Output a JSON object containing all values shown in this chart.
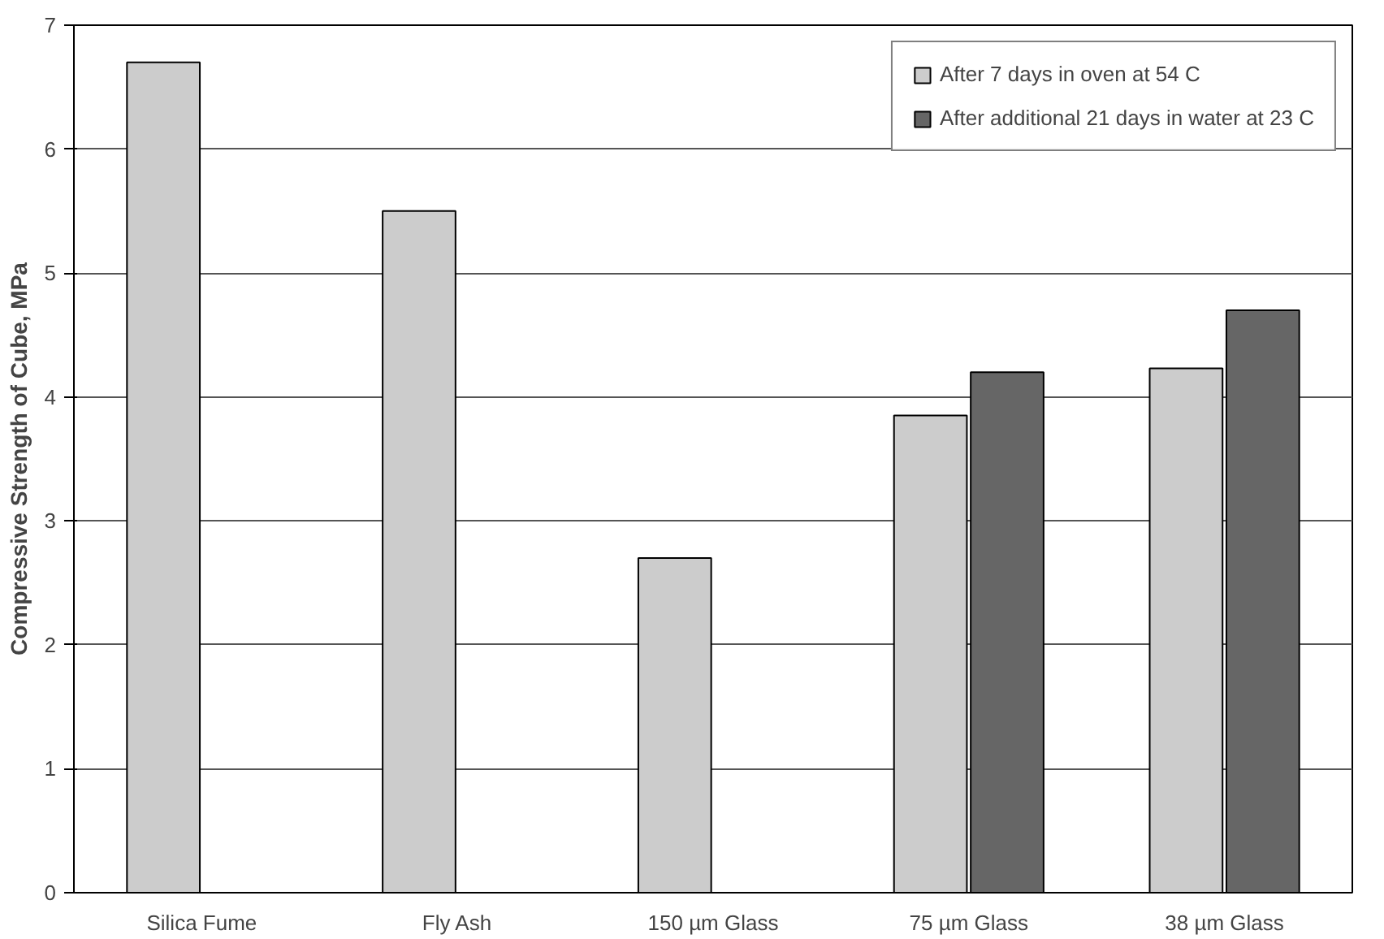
{
  "chart_data": {
    "type": "bar",
    "ylabel": "Compressive Strength of Cube, MPa",
    "categories": [
      "Silica Fume",
      "Fly Ash",
      "150 µm Glass",
      "75 µm Glass",
      "38 µm Glass"
    ],
    "series": [
      {
        "name": "After 7 days in oven at 54 C",
        "color": "#cccccc",
        "values": [
          6.7,
          5.5,
          2.7,
          3.85,
          4.23
        ]
      },
      {
        "name": "After additional 21 days in water at 23 C",
        "color": "#666666",
        "values": [
          null,
          null,
          null,
          4.2,
          4.7
        ]
      }
    ],
    "ylim": [
      0,
      7
    ],
    "yticks": [
      0,
      1,
      2,
      3,
      4,
      5,
      6,
      7
    ],
    "grid": "y",
    "legend": "top right"
  }
}
